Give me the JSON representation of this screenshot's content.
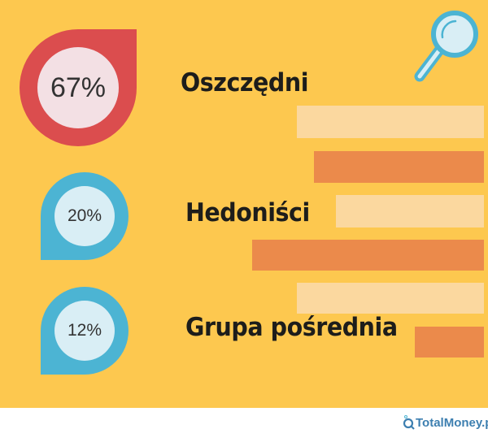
{
  "groups": [
    {
      "percent": "67%",
      "label": "Oszczędni",
      "value": 67
    },
    {
      "percent": "20%",
      "label": "Hedoniści",
      "value": 20
    },
    {
      "percent": "12%",
      "label": "Grupa pośrednia",
      "value": 12
    }
  ],
  "icons": {
    "magnifier": "magnifying-glass-icon"
  },
  "logo": {
    "text": "TotalMoney.pl"
  },
  "colors": {
    "background": "#fdc84f",
    "red": "#db4d4e",
    "blue": "#4cb4d3",
    "bar_light": "#fbd89f",
    "bar_orange": "#eb8a4b"
  }
}
